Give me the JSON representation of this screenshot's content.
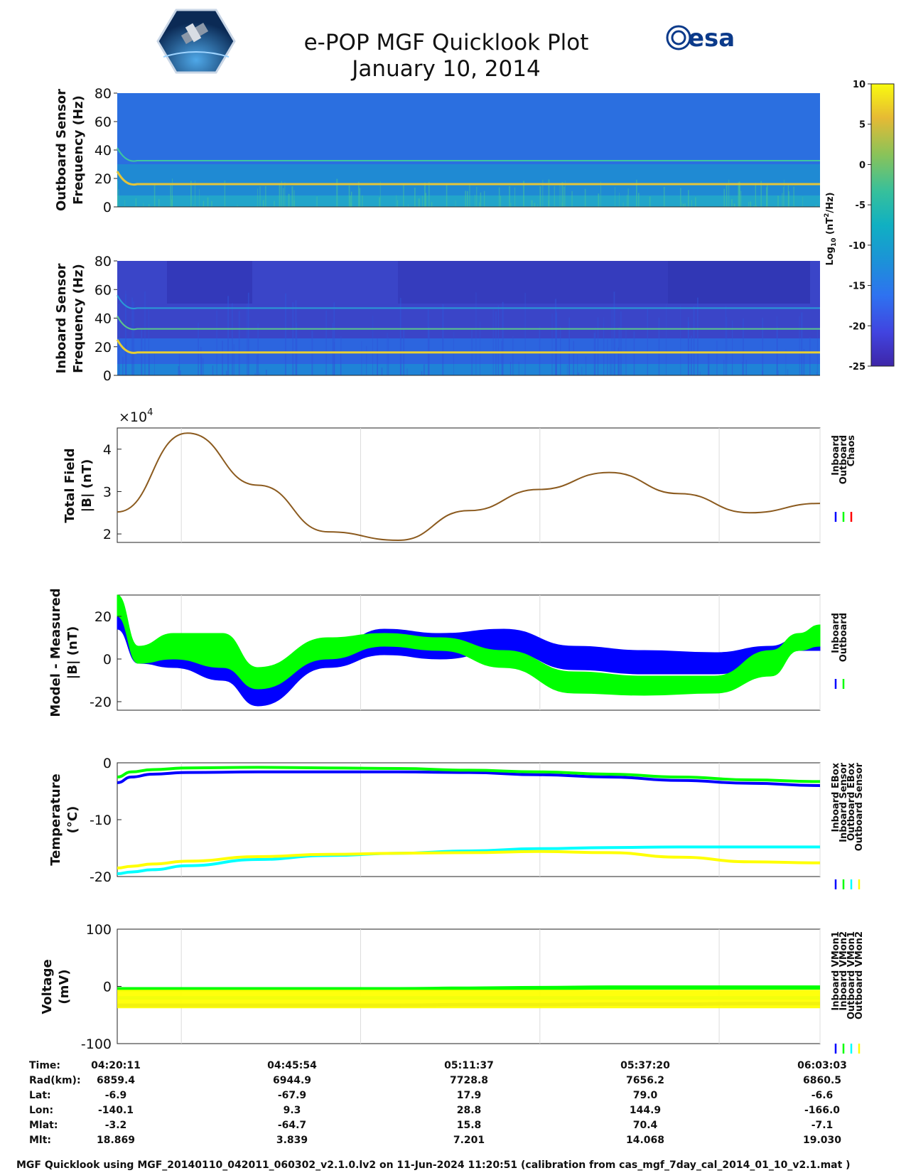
{
  "title": "e-POP MGF Quicklook Plot",
  "subtitle": "January 10, 2014",
  "logos": {
    "left": "cassiope-mission-logo",
    "right": "esa"
  },
  "colorbar": {
    "label": "Log10 (nT^2/Hz)",
    "ticks": [
      "10",
      "5",
      "0",
      "-5",
      "-10",
      "-15",
      "-20",
      "-25"
    ],
    "range": [
      -25,
      10
    ],
    "colormap": [
      "#3e26a8",
      "#2e5fe7",
      "#1b86d8",
      "#14a6c0",
      "#2bbd8d",
      "#8ac359",
      "#e1b92f",
      "#f9e01f",
      "#f9fb0e"
    ]
  },
  "footer": "MGF Quicklook using MGF_20140110_042011_060302_v2.1.0.lv2 on 11-Jun-2024 11:20:51 (calibration from cas_mgf_7day_cal_2014_01_10_v2.1.mat )",
  "orbit_table": {
    "row_labels": [
      "Time:",
      "Rad(km):",
      "Lat:",
      "Lon:",
      "Mlat:",
      "Mlt:"
    ],
    "columns": [
      [
        "04:20:11",
        "6859.4",
        "-6.9",
        "-140.1",
        "-3.2",
        "18.869"
      ],
      [
        "04:45:54",
        "6944.9",
        "-67.9",
        "9.3",
        "-64.7",
        "3.839"
      ],
      [
        "05:11:37",
        "7728.8",
        "17.9",
        "28.8",
        "15.8",
        "7.201"
      ],
      [
        "05:37:20",
        "7656.2",
        "79.0",
        "144.9",
        "70.4",
        "14.068"
      ],
      [
        "06:03:03",
        "6860.5",
        "-6.6",
        "-166.0",
        "-7.1",
        "19.030"
      ]
    ]
  },
  "chart_data": [
    {
      "type": "heatmap",
      "name": "outboard-spectrogram",
      "ylabel": [
        "Outboard Sensor",
        "Frequency (Hz)"
      ],
      "yticks": [
        "80",
        "60",
        "40",
        "20",
        "0"
      ],
      "ylim": [
        0,
        80
      ],
      "background": "#2b6fe0",
      "lines": [
        {
          "freq_hz": 16,
          "color": "#e4c53a"
        },
        {
          "freq_hz": 32.5,
          "color": "#3ec6a0"
        }
      ]
    },
    {
      "type": "heatmap",
      "name": "inboard-spectrogram",
      "ylabel": [
        "Inboard Sensor",
        "Frequency (Hz)"
      ],
      "yticks": [
        "80",
        "60",
        "40",
        "20",
        "0"
      ],
      "ylim": [
        0,
        80
      ],
      "background": "#3a45c8",
      "lines": [
        {
          "freq_hz": 16,
          "color": "#e8cf33"
        },
        {
          "freq_hz": 32.5,
          "color": "#5cc78a"
        },
        {
          "freq_hz": 47,
          "color": "#2a9bd6"
        }
      ]
    },
    {
      "type": "line",
      "name": "total-field",
      "ylabel": [
        "Total Field",
        "|B| (nT)"
      ],
      "exponent_label": "×10^4",
      "yticks": [
        "4",
        "3",
        "2"
      ],
      "ylim": [
        1.8,
        4.5
      ],
      "x": [
        0,
        10,
        20,
        30,
        40,
        50,
        60,
        70,
        80,
        90,
        100
      ],
      "series": [
        {
          "name": "Chaos",
          "color": "#8b5a1e",
          "values": [
            2.52,
            4.38,
            3.15,
            2.05,
            1.85,
            2.55,
            3.05,
            3.45,
            2.95,
            2.5,
            2.72
          ]
        }
      ],
      "legend": [
        {
          "label": "Inboard",
          "color": "#0000ff"
        },
        {
          "label": "Outboard",
          "color": "#00ff00"
        },
        {
          "label": "Chaos",
          "color": "#ff0000"
        }
      ]
    },
    {
      "type": "area",
      "name": "model-measured",
      "ylabel": [
        "Model - Measured",
        "|B| (nT)"
      ],
      "yticks": [
        "20",
        "0",
        "-20"
      ],
      "ylim": [
        -24,
        30
      ],
      "series": [
        {
          "name": "Inboard",
          "color": "#0000ff",
          "x": [
            0,
            3,
            8,
            15,
            20,
            30,
            38,
            46,
            55,
            65,
            75,
            85,
            93,
            97,
            100
          ],
          "upper": [
            24,
            6,
            4,
            4,
            -9,
            4,
            14,
            12,
            14,
            6,
            4,
            3,
            6,
            10,
            10
          ],
          "lower": [
            14,
            -2,
            -4,
            -10,
            -22,
            -4,
            2,
            0,
            4,
            -5,
            -7,
            -7,
            -3,
            4,
            4
          ]
        },
        {
          "name": "Outboard",
          "color": "#00ff00",
          "x": [
            0,
            3,
            8,
            15,
            20,
            30,
            38,
            46,
            55,
            65,
            75,
            85,
            93,
            97,
            100
          ],
          "upper": [
            30,
            6,
            12,
            12,
            -4,
            10,
            12,
            10,
            4,
            -6,
            -8,
            -8,
            4,
            12,
            16
          ],
          "lower": [
            20,
            -2,
            0,
            -4,
            -14,
            0,
            6,
            4,
            -4,
            -16,
            -17,
            -16,
            -8,
            4,
            6
          ]
        }
      ],
      "legend": [
        {
          "label": "Inboard",
          "color": "#0000ff"
        },
        {
          "label": "Outboard",
          "color": "#00ff00"
        }
      ]
    },
    {
      "type": "line",
      "name": "temperature",
      "ylabel": [
        "Temperature",
        "(°C)"
      ],
      "yticks": [
        "0",
        "-10",
        "-20"
      ],
      "ylim": [
        -20,
        0
      ],
      "x": [
        0,
        2,
        5,
        10,
        20,
        30,
        40,
        50,
        60,
        70,
        80,
        90,
        100
      ],
      "series": [
        {
          "name": "Inboard EBox",
          "color": "#0000ff",
          "values": [
            -3.5,
            -2.5,
            -2.0,
            -1.7,
            -1.6,
            -1.6,
            -1.6,
            -1.7,
            -2.1,
            -2.5,
            -3.1,
            -3.6,
            -4.0
          ]
        },
        {
          "name": "Inboard Sensor",
          "color": "#00ff00",
          "values": [
            -2.5,
            -1.6,
            -1.2,
            -0.9,
            -0.8,
            -0.9,
            -1.0,
            -1.3,
            -1.6,
            -2.0,
            -2.5,
            -3.0,
            -3.3
          ]
        },
        {
          "name": "Outboard EBox",
          "color": "#00ffff",
          "values": [
            -19.5,
            -19.2,
            -18.8,
            -18.1,
            -17.0,
            -16.3,
            -15.9,
            -15.5,
            -15.1,
            -14.9,
            -14.8,
            -14.8,
            -14.8
          ]
        },
        {
          "name": "Outboard Sensor",
          "color": "#ffff00",
          "values": [
            -18.5,
            -18.2,
            -17.8,
            -17.3,
            -16.5,
            -16.1,
            -15.9,
            -15.8,
            -15.6,
            -15.8,
            -16.6,
            -17.4,
            -17.6
          ]
        }
      ],
      "legend": [
        {
          "label": "Inboard EBox",
          "color": "#0000ff"
        },
        {
          "label": "Inboard Sensor",
          "color": "#00ff00"
        },
        {
          "label": "Outboard EBox",
          "color": "#00ffff"
        },
        {
          "label": "Outboard Sensor",
          "color": "#ffff00"
        }
      ]
    },
    {
      "type": "line",
      "name": "voltage",
      "ylabel": [
        "Voltage",
        "(mV)"
      ],
      "yticks": [
        "100",
        "0",
        "-100"
      ],
      "ylim": [
        -100,
        100
      ],
      "x": [
        0,
        10,
        20,
        30,
        40,
        50,
        60,
        70,
        80,
        90,
        100
      ],
      "series": [
        {
          "name": "Inboard VMon1",
          "color": "#0000ff",
          "values": [
            -33,
            -33,
            -33,
            -33,
            -33,
            -32,
            -32,
            -31,
            -31,
            -30,
            -30
          ]
        },
        {
          "name": "Inboard VMon2",
          "color": "#00ff00",
          "values": [
            -5,
            -5,
            -5,
            -5,
            -5,
            -4,
            -3,
            -2,
            -2,
            -2,
            -2
          ]
        },
        {
          "name": "Outboard VMon1",
          "color": "#00ffff",
          "values": [
            -20,
            -20,
            -20,
            -20,
            -20,
            -20,
            -20,
            -20,
            -20,
            -20,
            -20
          ]
        },
        {
          "name": "Outboard VMon2",
          "color": "#ffff00",
          "values": [
            -22,
            -22,
            -22,
            -22,
            -22,
            -22,
            -22,
            -22,
            -22,
            -22,
            -22
          ]
        }
      ],
      "legend": [
        {
          "label": "Inboard VMon1",
          "color": "#0000ff"
        },
        {
          "label": "Inboard VMon2",
          "color": "#00ff00"
        },
        {
          "label": "Outboard VMon1",
          "color": "#00ffff"
        },
        {
          "label": "Outboard VMon2",
          "color": "#ffff00"
        }
      ]
    }
  ]
}
